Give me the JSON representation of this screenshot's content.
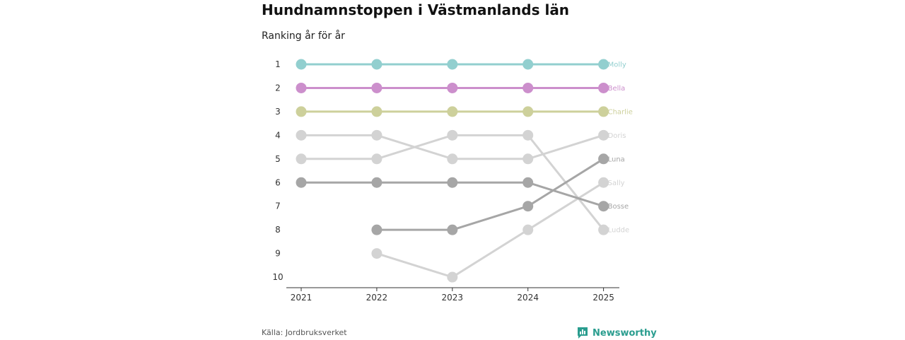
{
  "title": "Hundnamnstoppen i Västmanlands län",
  "subtitle": "Ranking år för år",
  "source": "Källa: Jordbruksverket",
  "brand": {
    "name": "Newsworthy",
    "logo_icon": "bar-chart-logo-icon",
    "color": "#2a9d8f"
  },
  "chart_data": {
    "type": "line",
    "subtype": "bump",
    "title": "Hundnamnstoppen i Västmanlands län",
    "subtitle": "Ranking år för år",
    "x": [
      2021,
      2022,
      2023,
      2024,
      2025
    ],
    "x_tick_labels": [
      "2021",
      "2022",
      "2023",
      "2024",
      "2025"
    ],
    "y_tick_labels": [
      "1",
      "2",
      "3",
      "4",
      "5",
      "6",
      "7",
      "8",
      "9",
      "10"
    ],
    "ylim": [
      1,
      10
    ],
    "y_inverted": true,
    "grid": false,
    "legend": "end-labels right",
    "series": [
      {
        "name": "Doris",
        "color": "#d3d3d3",
        "values": [
          4,
          4,
          5,
          5,
          4
        ]
      },
      {
        "name": "Ludde",
        "color": "#d3d3d3",
        "values": [
          5,
          5,
          4,
          4,
          8
        ]
      },
      {
        "name": "Sally",
        "color": "#d3d3d3",
        "values": [
          null,
          9,
          10,
          8,
          6
        ]
      },
      {
        "name": "Bosse",
        "color": "#a6a6a6",
        "values": [
          6,
          6,
          6,
          6,
          7
        ]
      },
      {
        "name": "Luna",
        "color": "#a6a6a6",
        "values": [
          null,
          8,
          8,
          7,
          5
        ]
      },
      {
        "name": "Charlie",
        "color": "#cdd09b",
        "values": [
          3,
          3,
          3,
          3,
          3
        ]
      },
      {
        "name": "Bella",
        "color": "#cc8fcc",
        "values": [
          2,
          2,
          2,
          2,
          2
        ]
      },
      {
        "name": "Molly",
        "color": "#92cfcf",
        "values": [
          1,
          1,
          1,
          1,
          1
        ]
      }
    ]
  }
}
